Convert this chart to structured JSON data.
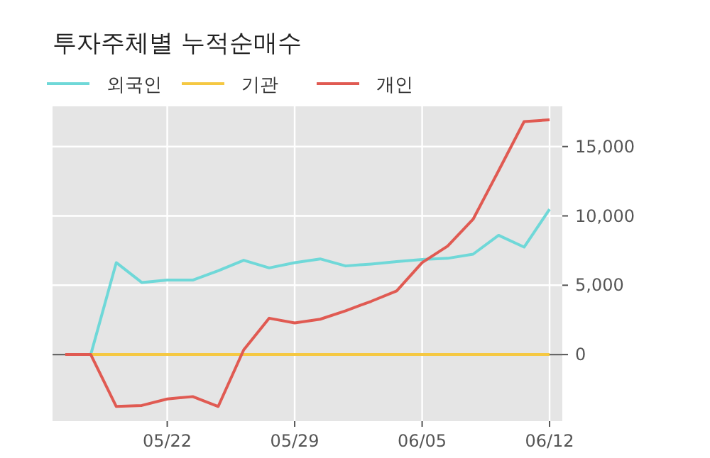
{
  "chart_data": {
    "type": "line",
    "title": "투자주체별 누적순매수",
    "categories": [
      null,
      null,
      null,
      null,
      "05/22",
      null,
      null,
      null,
      null,
      "05/29",
      null,
      null,
      null,
      null,
      "06/05",
      null,
      null,
      null,
      null,
      "06/12"
    ],
    "series": [
      {
        "name": "외국인",
        "color": "#6fd8d8",
        "values": [
          0,
          0,
          6630,
          5200,
          5370,
          5370,
          6050,
          6800,
          6250,
          6630,
          6900,
          6390,
          6530,
          6700,
          6860,
          6940,
          7240,
          8600,
          7750,
          10480
        ]
      },
      {
        "name": "기관",
        "color": "#f5c842",
        "values": [
          0,
          0,
          0,
          0,
          0,
          0,
          0,
          0,
          0,
          0,
          0,
          0,
          0,
          0,
          0,
          0,
          0,
          0,
          0,
          0
        ]
      },
      {
        "name": "개인",
        "color": "#e05a52",
        "values": [
          0,
          0,
          -3740,
          -3670,
          -3200,
          -3030,
          -3740,
          340,
          2620,
          2280,
          2550,
          3160,
          3840,
          4590,
          6630,
          7820,
          9760,
          13260,
          16800,
          16930
        ]
      }
    ],
    "ylim": [
      -4800,
      17900
    ],
    "yticks": [
      0,
      {
        "value": 5000,
        "label": "5,000"
      },
      {
        "value": 10000,
        "label": "10,000"
      },
      {
        "value": 15000,
        "label": "15,000"
      }
    ],
    "ref_lines": [
      {
        "axis": "y",
        "value": 0,
        "color": "#666666"
      }
    ],
    "grid": true,
    "legend": "top left",
    "marker": "none",
    "line_style": "solid"
  }
}
